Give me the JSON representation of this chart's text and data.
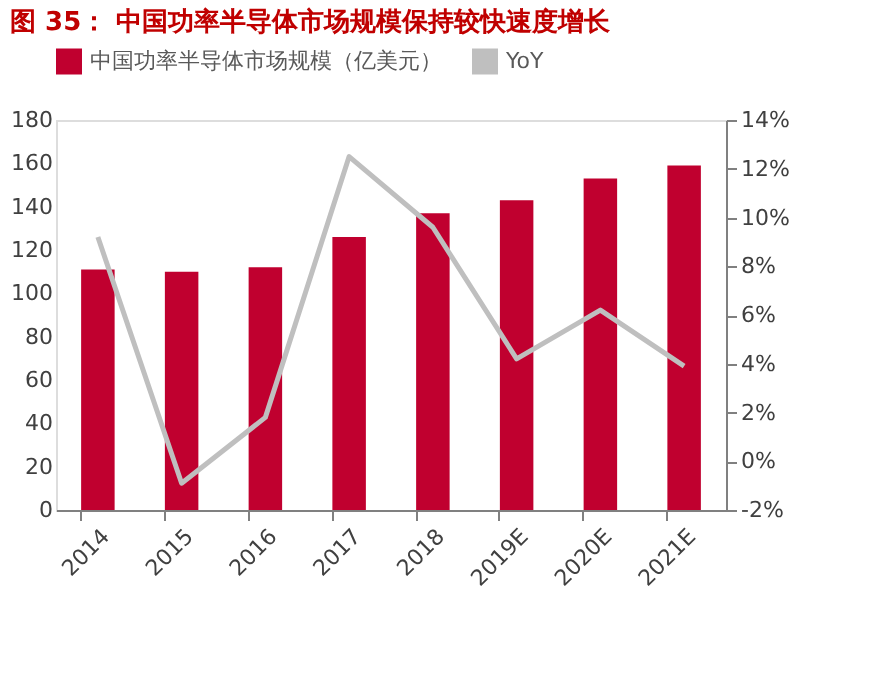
{
  "chart_data": {
    "type": "bar",
    "title": "图 35：  中国功率半导体市场规模保持较快速度增长",
    "categories": [
      "2014",
      "2015",
      "2016",
      "2017",
      "2018",
      "2019E",
      "2020E",
      "2021E"
    ],
    "series": [
      {
        "name": "中国功率半导体市场规模（亿美元）",
        "color": "#c0002f",
        "values": [
          111,
          110,
          112,
          126,
          137,
          143,
          153,
          159
        ]
      },
      {
        "name": "YoY",
        "color": "#bfbfbf",
        "type": "line",
        "axis": "y2",
        "values": [
          9.2,
          -0.9,
          1.8,
          12.5,
          9.6,
          4.2,
          6.2,
          3.9
        ]
      }
    ],
    "ylim": [
      0,
      180
    ],
    "yticks": [
      0,
      20,
      40,
      60,
      80,
      100,
      120,
      140,
      160,
      180
    ],
    "y2lim": [
      -2,
      14
    ],
    "y2ticks": [
      {
        "value": -2,
        "label": "-2%"
      },
      {
        "value": 0,
        "label": "0%"
      },
      {
        "value": 2,
        "label": "2%"
      },
      {
        "value": 4,
        "label": "4%"
      },
      {
        "value": 6,
        "label": "6%"
      },
      {
        "value": 8,
        "label": "8%"
      },
      {
        "value": 10,
        "label": "10%"
      },
      {
        "value": 12,
        "label": "12%"
      },
      {
        "value": 14,
        "label": "14%"
      }
    ],
    "grid": false,
    "legend": "top",
    "marker": "none",
    "line_style": "solid"
  }
}
